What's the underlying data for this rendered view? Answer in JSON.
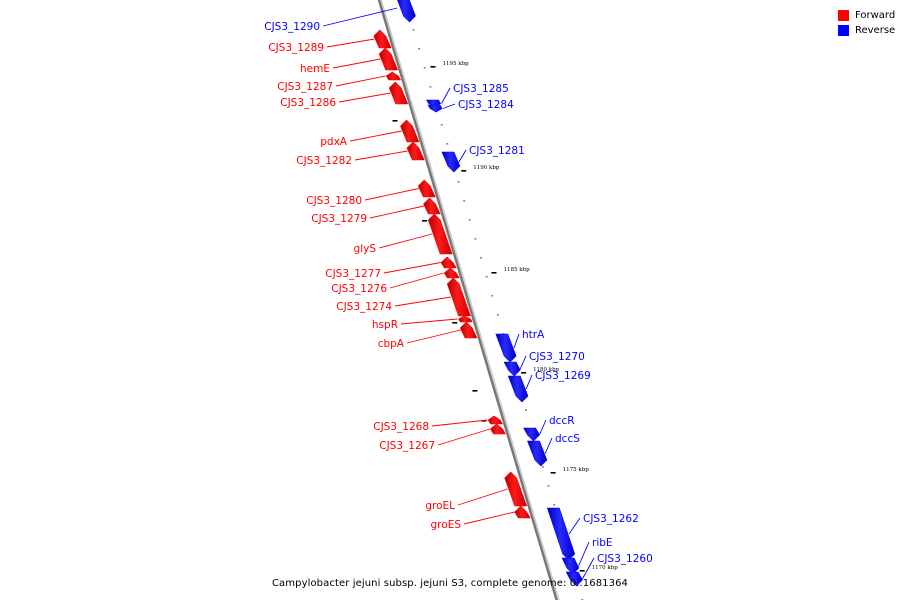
{
  "colors": {
    "forward": "#ff0000",
    "reverse": "#0000ff",
    "line": "#777777"
  },
  "legend": {
    "forward": "Forward",
    "reverse": "Reverse"
  },
  "caption": "Campylobacter jejuni subsp. jejuni S3, complete genome: 0..1681364",
  "ticks": [
    {
      "kbp": 1195,
      "label": "1195 kbp"
    },
    {
      "kbp": 1190,
      "label": "1190 kbp"
    },
    {
      "kbp": 1185,
      "label": "1185 kbp"
    },
    {
      "kbp": 1180,
      "label": "1180 kbp"
    },
    {
      "kbp": 1175,
      "label": "1175 kbp"
    },
    {
      "kbp": 1170,
      "label": "1170 kbp"
    }
  ],
  "genes": [
    {
      "name": "CJS3_1290",
      "strand": "reverse"
    },
    {
      "name": "CJS3_1289",
      "strand": "forward"
    },
    {
      "name": "hemE",
      "strand": "forward"
    },
    {
      "name": "CJS3_1287",
      "strand": "forward"
    },
    {
      "name": "CJS3_1286",
      "strand": "forward"
    },
    {
      "name": "CJS3_1285",
      "strand": "reverse"
    },
    {
      "name": "CJS3_1284",
      "strand": "reverse"
    },
    {
      "name": "pdxA",
      "strand": "forward"
    },
    {
      "name": "CJS3_1282",
      "strand": "forward"
    },
    {
      "name": "CJS3_1281",
      "strand": "reverse"
    },
    {
      "name": "CJS3_1280",
      "strand": "forward"
    },
    {
      "name": "CJS3_1279",
      "strand": "forward"
    },
    {
      "name": "glyS",
      "strand": "forward"
    },
    {
      "name": "CJS3_1277",
      "strand": "forward"
    },
    {
      "name": "CJS3_1276",
      "strand": "forward"
    },
    {
      "name": "CJS3_1274",
      "strand": "forward"
    },
    {
      "name": "hspR",
      "strand": "forward"
    },
    {
      "name": "cbpA",
      "strand": "forward"
    },
    {
      "name": "htrA",
      "strand": "reverse"
    },
    {
      "name": "CJS3_1270",
      "strand": "reverse"
    },
    {
      "name": "CJS3_1269",
      "strand": "reverse"
    },
    {
      "name": "CJS3_1268",
      "strand": "forward"
    },
    {
      "name": "CJS3_1267",
      "strand": "forward"
    },
    {
      "name": "dccR",
      "strand": "reverse"
    },
    {
      "name": "dccS",
      "strand": "reverse"
    },
    {
      "name": "groEL",
      "strand": "forward"
    },
    {
      "name": "groES",
      "strand": "forward"
    },
    {
      "name": "CJS3_1262",
      "strand": "reverse"
    },
    {
      "name": "ribE",
      "strand": "reverse"
    },
    {
      "name": "CJS3_1260",
      "strand": "reverse"
    }
  ]
}
